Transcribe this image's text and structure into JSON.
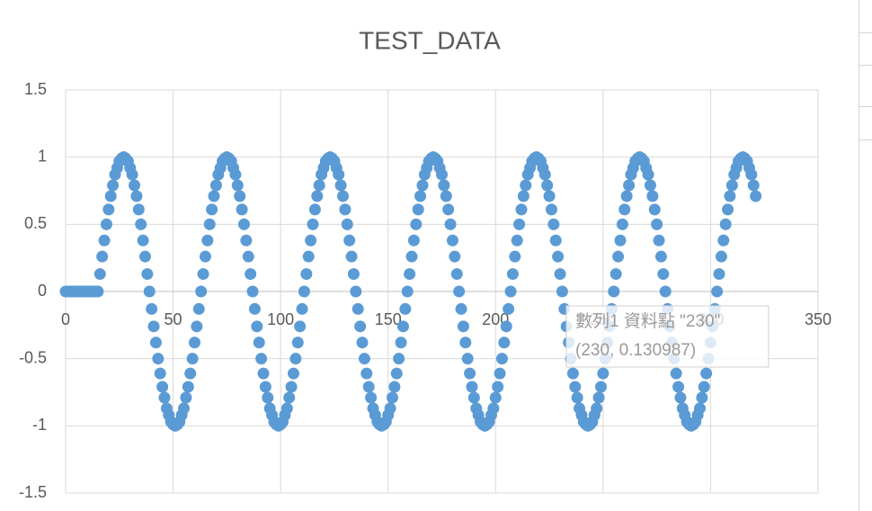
{
  "chart_data": {
    "type": "scatter",
    "title": "TEST_DATA",
    "color": "#5b9bd5",
    "grid": true,
    "xlim": [
      0,
      350
    ],
    "xticks": [
      0,
      50,
      100,
      150,
      200,
      250,
      300,
      350
    ],
    "ylim": [
      -1.5,
      1.5
    ],
    "yticks": [
      -1.5,
      -1,
      -0.5,
      0,
      0.5,
      1,
      1.5
    ],
    "x": [
      0,
      1,
      2,
      3,
      4,
      5,
      6,
      7,
      8,
      9,
      10,
      11,
      12,
      13,
      14,
      15,
      16,
      17,
      18,
      19,
      20,
      21,
      22,
      23,
      24,
      25,
      26,
      27,
      28,
      29,
      30,
      31,
      32,
      33,
      34,
      35,
      36,
      37,
      38,
      39,
      40,
      41,
      42,
      43,
      44,
      45,
      46,
      47,
      48,
      49,
      50,
      51,
      52,
      53,
      54,
      55,
      56,
      57,
      58,
      59,
      60,
      61,
      62,
      63,
      64,
      65,
      66,
      67,
      68,
      69,
      70,
      71,
      72,
      73,
      74,
      75,
      76,
      77,
      78,
      79,
      80,
      81,
      82,
      83,
      84,
      85,
      86,
      87,
      88,
      89,
      90,
      91,
      92,
      93,
      94,
      95,
      96,
      97,
      98,
      99,
      100,
      101,
      102,
      103,
      104,
      105,
      106,
      107,
      108,
      109,
      110,
      111,
      112,
      113,
      114,
      115,
      116,
      117,
      118,
      119,
      120,
      121,
      122,
      123,
      124,
      125,
      126,
      127,
      128,
      129,
      130,
      131,
      132,
      133,
      134,
      135,
      136,
      137,
      138,
      139,
      140,
      141,
      142,
      143,
      144,
      145,
      146,
      147,
      148,
      149,
      150,
      151,
      152,
      153,
      154,
      155,
      156,
      157,
      158,
      159,
      160,
      161,
      162,
      163,
      164,
      165,
      166,
      167,
      168,
      169,
      170,
      171,
      172,
      173,
      174,
      175,
      176,
      177,
      178,
      179,
      180,
      181,
      182,
      183,
      184,
      185,
      186,
      187,
      188,
      189,
      190,
      191,
      192,
      193,
      194,
      195,
      196,
      197,
      198,
      199,
      200,
      201,
      202,
      203,
      204,
      205,
      206,
      207,
      208,
      209,
      210,
      211,
      212,
      213,
      214,
      215,
      216,
      217,
      218,
      219,
      220,
      221,
      222,
      223,
      224,
      225,
      226,
      227,
      228,
      229,
      230,
      231,
      232,
      233,
      234,
      235,
      236,
      237,
      238,
      239,
      240,
      241,
      242,
      243,
      244,
      245,
      246,
      247,
      248,
      249,
      250,
      251,
      252,
      253,
      254,
      255,
      256,
      257,
      258,
      259,
      260,
      261,
      262,
      263,
      264,
      265,
      266,
      267,
      268,
      269,
      270,
      271,
      272,
      273,
      274,
      275,
      276,
      277,
      278,
      279,
      280,
      281,
      282,
      283,
      284,
      285,
      286,
      287,
      288,
      289,
      290,
      291,
      292,
      293,
      294,
      295,
      296,
      297,
      298,
      299,
      300,
      301,
      302,
      303,
      304,
      305,
      306,
      307,
      308,
      309,
      310,
      311,
      312,
      313,
      314,
      315,
      316,
      317,
      318,
      319,
      320,
      321
    ],
    "values": [
      0,
      0,
      0,
      0,
      0,
      0,
      0,
      0,
      0,
      0,
      0,
      0,
      0,
      0,
      0,
      0,
      0.13,
      0.26,
      0.38,
      0.5,
      0.61,
      0.71,
      0.79,
      0.87,
      0.92,
      0.97,
      0.99,
      1,
      0.99,
      0.97,
      0.92,
      0.87,
      0.79,
      0.71,
      0.61,
      0.5,
      0.38,
      0.26,
      0.13,
      0,
      -0.13,
      -0.26,
      -0.38,
      -0.5,
      -0.61,
      -0.71,
      -0.79,
      -0.87,
      -0.92,
      -0.97,
      -0.99,
      -1,
      -0.99,
      -0.97,
      -0.92,
      -0.87,
      -0.79,
      -0.71,
      -0.61,
      -0.5,
      -0.38,
      -0.26,
      -0.13,
      0,
      0.13,
      0.26,
      0.38,
      0.5,
      0.61,
      0.71,
      0.79,
      0.87,
      0.92,
      0.97,
      0.99,
      1,
      0.99,
      0.97,
      0.92,
      0.87,
      0.79,
      0.71,
      0.61,
      0.5,
      0.38,
      0.26,
      0.13,
      0,
      -0.13,
      -0.26,
      -0.38,
      -0.5,
      -0.61,
      -0.71,
      -0.79,
      -0.87,
      -0.92,
      -0.97,
      -0.99,
      -1,
      -0.99,
      -0.97,
      -0.92,
      -0.87,
      -0.79,
      -0.71,
      -0.61,
      -0.5,
      -0.38,
      -0.26,
      -0.13,
      0,
      0.13,
      0.26,
      0.38,
      0.5,
      0.61,
      0.71,
      0.79,
      0.87,
      0.92,
      0.97,
      0.99,
      1,
      0.99,
      0.97,
      0.92,
      0.87,
      0.79,
      0.71,
      0.61,
      0.5,
      0.38,
      0.26,
      0.13,
      0,
      -0.13,
      -0.26,
      -0.38,
      -0.5,
      -0.61,
      -0.71,
      -0.79,
      -0.87,
      -0.92,
      -0.97,
      -0.99,
      -1,
      -0.99,
      -0.97,
      -0.92,
      -0.87,
      -0.79,
      -0.71,
      -0.61,
      -0.5,
      -0.38,
      -0.26,
      -0.13,
      0,
      0.13,
      0.26,
      0.38,
      0.5,
      0.61,
      0.71,
      0.79,
      0.87,
      0.92,
      0.97,
      0.99,
      1,
      0.99,
      0.97,
      0.92,
      0.87,
      0.79,
      0.71,
      0.61,
      0.5,
      0.38,
      0.26,
      0.13,
      0,
      -0.13,
      -0.26,
      -0.38,
      -0.5,
      -0.61,
      -0.71,
      -0.79,
      -0.87,
      -0.92,
      -0.97,
      -0.99,
      -1,
      -0.99,
      -0.97,
      -0.92,
      -0.87,
      -0.79,
      -0.71,
      -0.61,
      -0.5,
      -0.38,
      -0.26,
      -0.13,
      0,
      0.13,
      0.26,
      0.38,
      0.5,
      0.61,
      0.71,
      0.79,
      0.87,
      0.92,
      0.97,
      0.99,
      1,
      0.99,
      0.97,
      0.92,
      0.87,
      0.79,
      0.71,
      0.61,
      0.5,
      0.38,
      0.26,
      0.13,
      0,
      -0.13,
      -0.26,
      -0.38,
      -0.5,
      -0.61,
      -0.71,
      -0.79,
      -0.87,
      -0.92,
      -0.97,
      -0.99,
      -1,
      -0.99,
      -0.97,
      -0.92,
      -0.87,
      -0.79,
      -0.71,
      -0.61,
      -0.5,
      -0.38,
      -0.26,
      -0.13,
      0,
      0.13,
      0.26,
      0.38,
      0.5,
      0.61,
      0.71,
      0.79,
      0.87,
      0.92,
      0.97,
      0.99,
      1,
      0.99,
      0.97,
      0.92,
      0.87,
      0.79,
      0.71,
      0.61,
      0.5,
      0.38,
      0.26,
      0.13,
      0,
      -0.13,
      -0.26,
      -0.38,
      -0.5,
      -0.61,
      -0.71,
      -0.79,
      -0.87,
      -0.92,
      -0.97,
      -0.99,
      -1,
      -0.99,
      -0.97,
      -0.92,
      -0.87,
      -0.79,
      -0.71,
      -0.61,
      -0.5,
      -0.38,
      -0.26,
      -0.13,
      0,
      0.13,
      0.26,
      0.38,
      0.5,
      0.61,
      0.71,
      0.79,
      0.87,
      0.92,
      0.97,
      0.99,
      1,
      0.99,
      0.97,
      0.92,
      0.87,
      0.79,
      0.71
    ],
    "tooltip": {
      "title": "數列1 資料點 \"230\"",
      "text": "(230, 0.130987)"
    }
  }
}
